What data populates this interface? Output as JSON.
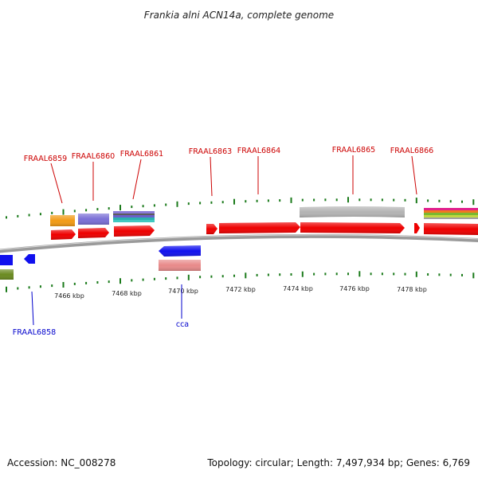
{
  "title": "Frankia alni ACN14a, complete genome",
  "footer": {
    "accession": "Accession: NC_008278",
    "summary": "Topology: circular; Length: 7,497,934 bp; Genes: 6,769"
  },
  "colors": {
    "forward_label": "#cc0000",
    "reverse_label": "#0000cc",
    "tick": "#1a7a1a",
    "backbone": "#7a7a7a"
  },
  "scale": {
    "tick_labels": [
      "7466 kbp",
      "7468 kbp",
      "7470 kbp",
      "7472 kbp",
      "7474 kbp",
      "7476 kbp",
      "7478 kbp"
    ]
  },
  "genes": {
    "forward": [
      {
        "name": "FRAAL6859"
      },
      {
        "name": "FRAAL6860"
      },
      {
        "name": "FRAAL6861"
      },
      {
        "name": "FRAAL6863"
      },
      {
        "name": "FRAAL6864"
      },
      {
        "name": "FRAAL6865"
      },
      {
        "name": "FRAAL6866"
      }
    ],
    "reverse": [
      {
        "name": "FRAAL6858"
      },
      {
        "name": "cca"
      }
    ]
  }
}
